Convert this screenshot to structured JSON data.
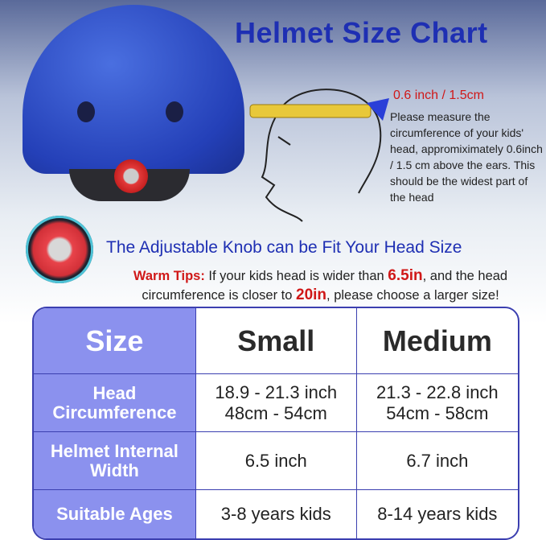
{
  "title": "Helmet Size Chart",
  "measure": {
    "label": "0.6 inch / 1.5cm",
    "text": "Please measure the circumference of your kids' head, appromiximately 0.6inch / 1.5 cm above the ears. This should be the widest part of the head"
  },
  "knob_title": "The Adjustable Knob can be Fit Your Head Size",
  "tips": {
    "label": "Warm Tips:",
    "part1": " If your kids head is wider than ",
    "width": "6.5in",
    "part2": ", and the head circumference is closer to ",
    "circ": "20in",
    "part3": ", please choose a larger size!"
  },
  "table": {
    "header": [
      "Size",
      "Small",
      "Medium"
    ],
    "rows": [
      {
        "label": "Head Circumference",
        "small": [
          "18.9 - 21.3 inch",
          "48cm - 54cm"
        ],
        "medium": [
          "21.3 - 22.8 inch",
          "54cm - 58cm"
        ]
      },
      {
        "label": "Helmet Internal Width",
        "small": [
          "6.5 inch"
        ],
        "medium": [
          "6.7 inch"
        ]
      },
      {
        "label": "Suitable Ages",
        "small": [
          "3-8 years kids"
        ],
        "medium": [
          "8-14 years kids"
        ]
      }
    ]
  },
  "colors": {
    "title": "#1e2fb3",
    "accent_red": "#d01818",
    "table_header": "#8b91ee",
    "helmet": "#2440b8"
  }
}
